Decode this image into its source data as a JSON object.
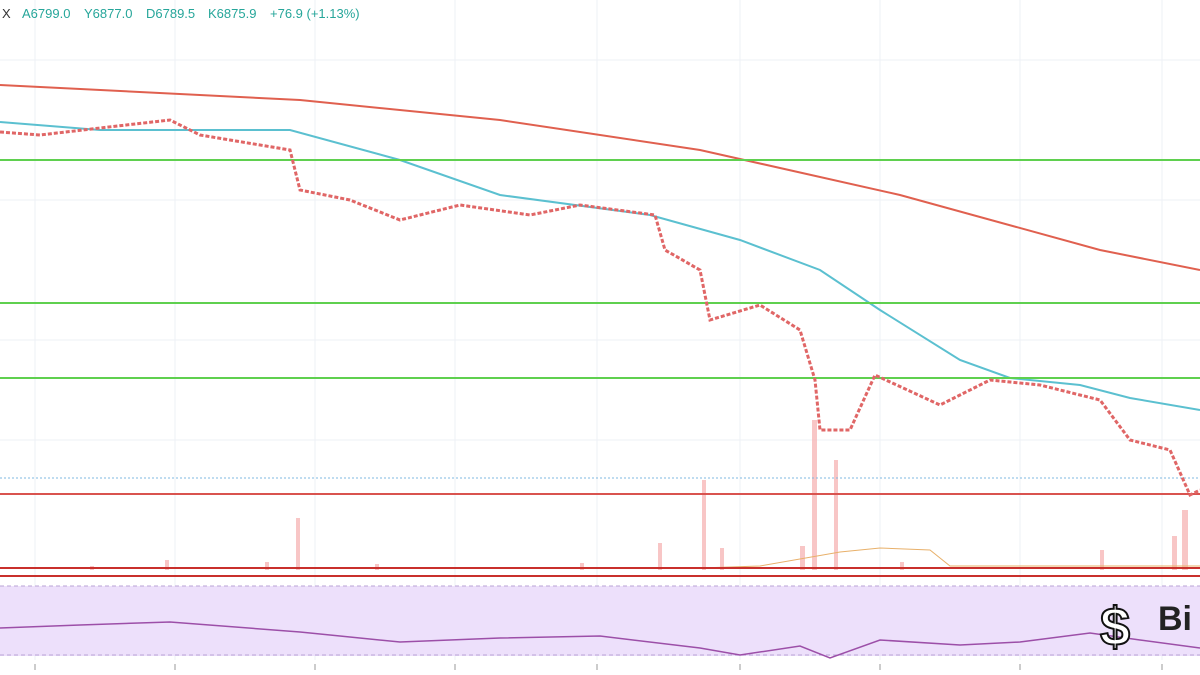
{
  "header": {
    "symbol": "X",
    "open": "A6799.0",
    "high": "Y6877.0",
    "low": "D6789.5",
    "close": "K6875.9",
    "change": "+76.9 (+1.13%)"
  },
  "watermark": "Bi"
}
